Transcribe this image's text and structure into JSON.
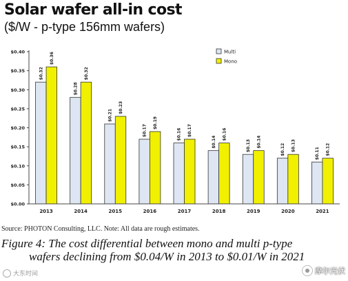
{
  "header": {
    "title": "Solar wafer all-in cost",
    "subtitle": "($/W - p-type 156mm wafers)"
  },
  "chart_data": {
    "type": "bar",
    "categories": [
      "2013",
      "2014",
      "2015",
      "2016",
      "2017",
      "2018",
      "2019",
      "2020",
      "2021"
    ],
    "series": [
      {
        "name": "Multi",
        "color": "#dde6f2",
        "values": [
          0.32,
          0.28,
          0.21,
          0.17,
          0.16,
          0.14,
          0.13,
          0.12,
          0.11
        ],
        "labels": [
          "$0.32",
          "$0.28",
          "$0.21",
          "$0.17",
          "$0.16",
          "$0.14",
          "$0.13",
          "$0.12",
          "$0.11"
        ]
      },
      {
        "name": "Mono",
        "color": "#f0f000",
        "values": [
          0.36,
          0.32,
          0.23,
          0.19,
          0.17,
          0.16,
          0.14,
          0.13,
          0.12
        ],
        "labels": [
          "$0.36",
          "$0.32",
          "$0.23",
          "$0.19",
          "$0.17",
          "$0.16",
          "$0.14",
          "$0.13",
          "$0.12"
        ]
      }
    ],
    "ylim": [
      0,
      0.4
    ],
    "yticks": [
      "$0.00",
      "$0.05",
      "$0.10",
      "$0.15",
      "$0.20",
      "$0.25",
      "$0.30",
      "$0.35",
      "$0.40"
    ],
    "grid": false,
    "legend": "top-right"
  },
  "source": "Source: PHOTON Consulting, LLC. Note: All data are rough estimates.",
  "caption": {
    "line1": "Figure 4: The cost differential between mono and multi p-type",
    "line2": "wafers declining from $0.04/W in 2013 to $0.01/W in 2021"
  },
  "watermark": {
    "left_text": "大东时间",
    "right_text": "摩尔光伏",
    "left_icon": "wechat-icon",
    "right_icon": "logo-icon"
  }
}
